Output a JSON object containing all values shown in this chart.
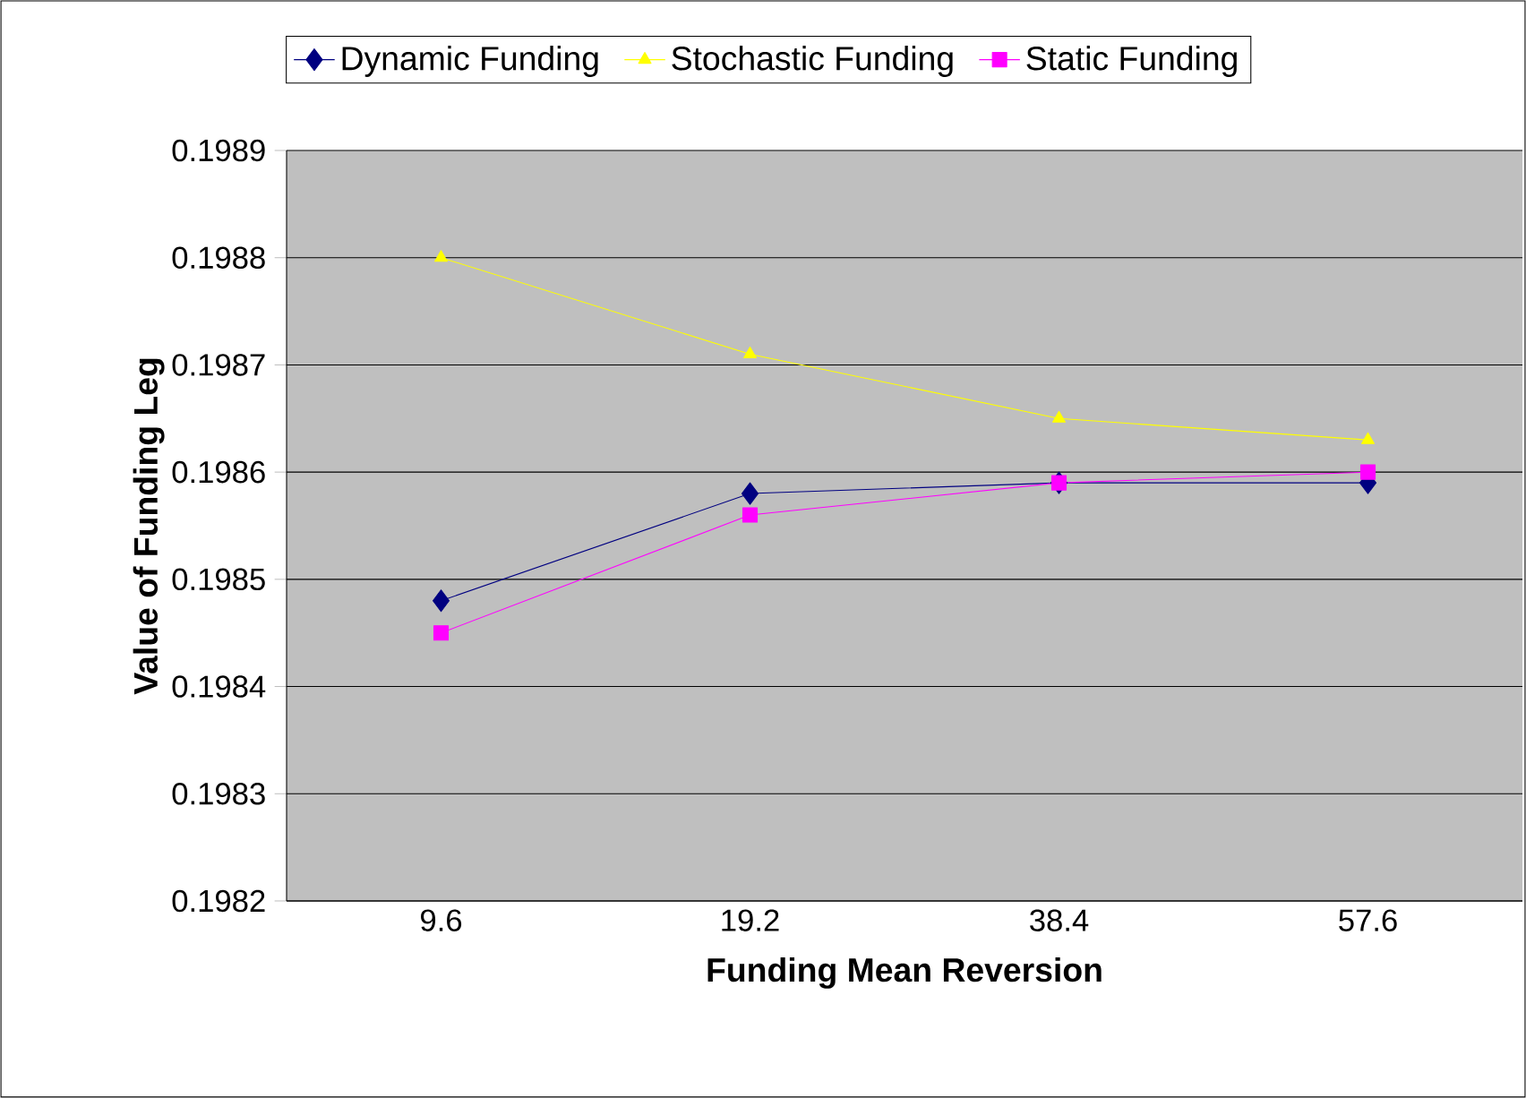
{
  "chart_data": {
    "type": "line",
    "xlabel": "Funding Mean Reversion",
    "ylabel": "Value of Funding Leg",
    "categories": [
      "9.6",
      "19.2",
      "38.4",
      "57.6"
    ],
    "series": [
      {
        "name": "Dynamic Funding",
        "color": "#000080",
        "marker": "diamond",
        "values": [
          0.19848,
          0.19858,
          0.19859,
          0.19859
        ]
      },
      {
        "name": "Stochastic Funding",
        "color": "#ffff00",
        "marker": "triangle",
        "values": [
          0.1988,
          0.19871,
          0.19865,
          0.19863
        ]
      },
      {
        "name": "Static Funding",
        "color": "#ff00ff",
        "marker": "square",
        "values": [
          0.19845,
          0.19856,
          0.19859,
          0.1986
        ]
      }
    ],
    "ylim": [
      0.1982,
      0.1989
    ],
    "yticks": [
      0.1982,
      0.1983,
      0.1984,
      0.1985,
      0.1986,
      0.1987,
      0.1988,
      0.1989
    ],
    "grid": "y",
    "legend": "top",
    "line_style": "solid"
  }
}
